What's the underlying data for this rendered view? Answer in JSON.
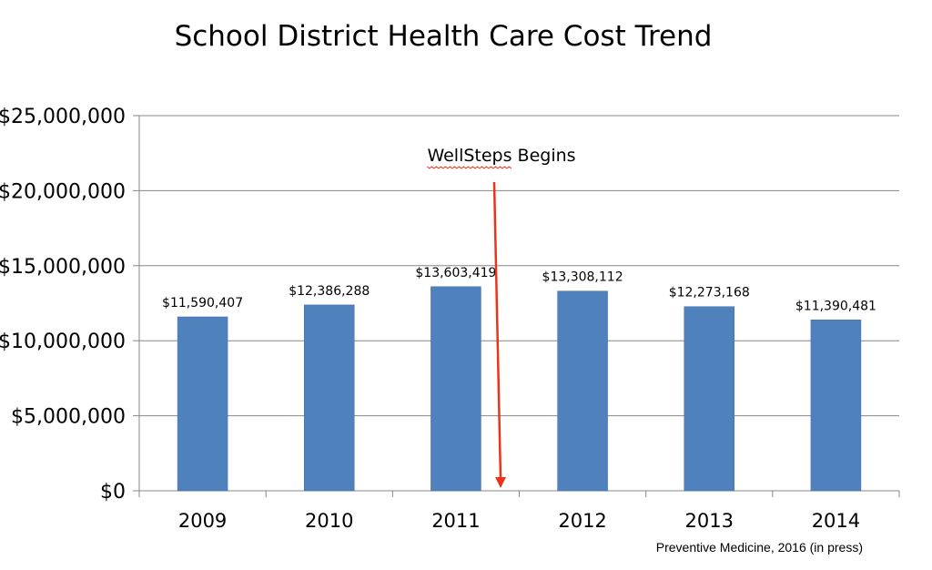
{
  "chart_data": {
    "type": "bar",
    "title": "School District Health Care Cost Trend",
    "categories": [
      "2009",
      "2010",
      "2011",
      "2012",
      "2013",
      "2014"
    ],
    "values": [
      11590407,
      12386288,
      13603419,
      13308112,
      12273168,
      11390481
    ],
    "data_labels": [
      "$11,590,407",
      "$12,386,288",
      "$13,603,419",
      "$13,308,112",
      "$12,273,168",
      "$11,390,481"
    ],
    "ylim": [
      0,
      25000000
    ],
    "yticks": [
      0,
      5000000,
      10000000,
      15000000,
      20000000,
      25000000
    ],
    "ytick_labels": [
      "$0",
      "$5,000,000",
      "$10,000,000",
      "$15,000,000",
      "$20,000,000",
      "$25,000,000"
    ],
    "xlabel": "",
    "ylabel": "",
    "grid": true,
    "legend": "none",
    "bar_color": "#4f81bd",
    "annotation": {
      "text": "WellSteps Begins",
      "between_categories": [
        "2011",
        "2012"
      ],
      "arrow_color": "#e8341c",
      "squiggle_color": "#e8341c"
    },
    "source_note": "Preventive Medicine, 2016 (in press)"
  }
}
